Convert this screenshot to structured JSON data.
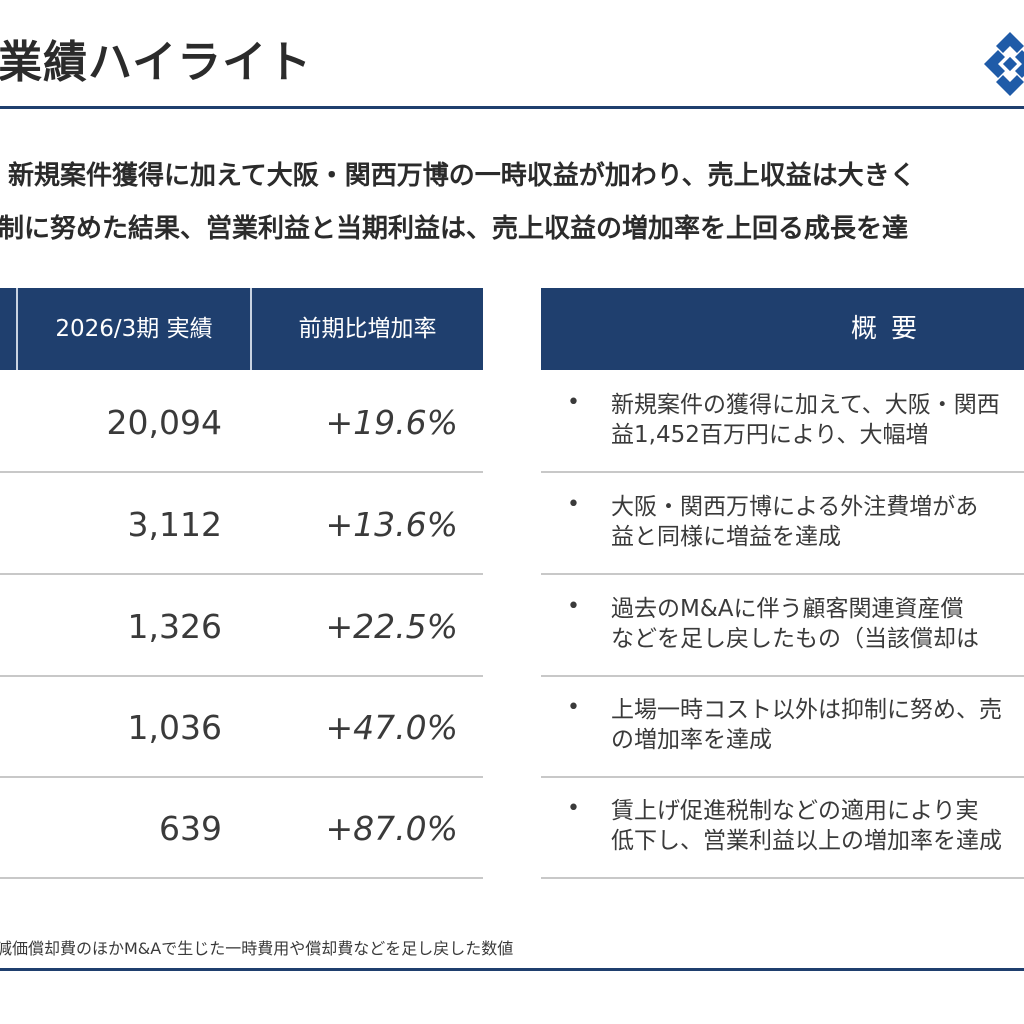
{
  "header": {
    "title": "業績ハイライト"
  },
  "logo": {
    "icon": "diamond-logo-icon",
    "color": "#1f5ba8"
  },
  "summary": {
    "line1": "新規案件獲得に加えて大阪・関西万博の一時収益が加わり、売上収益は大きく",
    "line2": "制に努めた結果、営業利益と当期利益は、売上収益の増加率を上回る成長を達"
  },
  "table": {
    "headers": {
      "actual": "2026/3期 実績",
      "growth": "前期比増加率"
    },
    "rows": [
      {
        "value": "20,094",
        "growth": "+19.6%"
      },
      {
        "value": "3,112",
        "growth": "+13.6%"
      },
      {
        "value": "1,326",
        "growth": "+22.5%"
      },
      {
        "value": "1,036",
        "growth": "+47.0%"
      },
      {
        "value": "639",
        "growth": "+87.0%"
      }
    ]
  },
  "overview": {
    "header": "概要",
    "bullet": "•",
    "items": [
      {
        "line1": "新規案件の獲得に加えて、大阪・関西",
        "line2": "益1,452百万円により、大幅増"
      },
      {
        "line1": "大阪・関西万博による外注費増があ",
        "line2": "益と同様に増益を達成"
      },
      {
        "line1": "過去のM&Aに伴う顧客関連資産償",
        "line2": "などを足し戻したもの（当該償却は"
      },
      {
        "line1": "上場一時コスト以外は抑制に努め、売",
        "line2": "の増加率を達成"
      },
      {
        "line1": "賃上げ促進税制などの適用により実",
        "line2": "低下し、営業利益以上の増加率を達成"
      }
    ]
  },
  "footnote": "減価償却費のほかM&Aで生じた一時費用や償却費などを足し戻した数値",
  "colors": {
    "navy": "#1f3f6e",
    "divider": "#c8c8c8",
    "text": "#3a3a3a"
  }
}
